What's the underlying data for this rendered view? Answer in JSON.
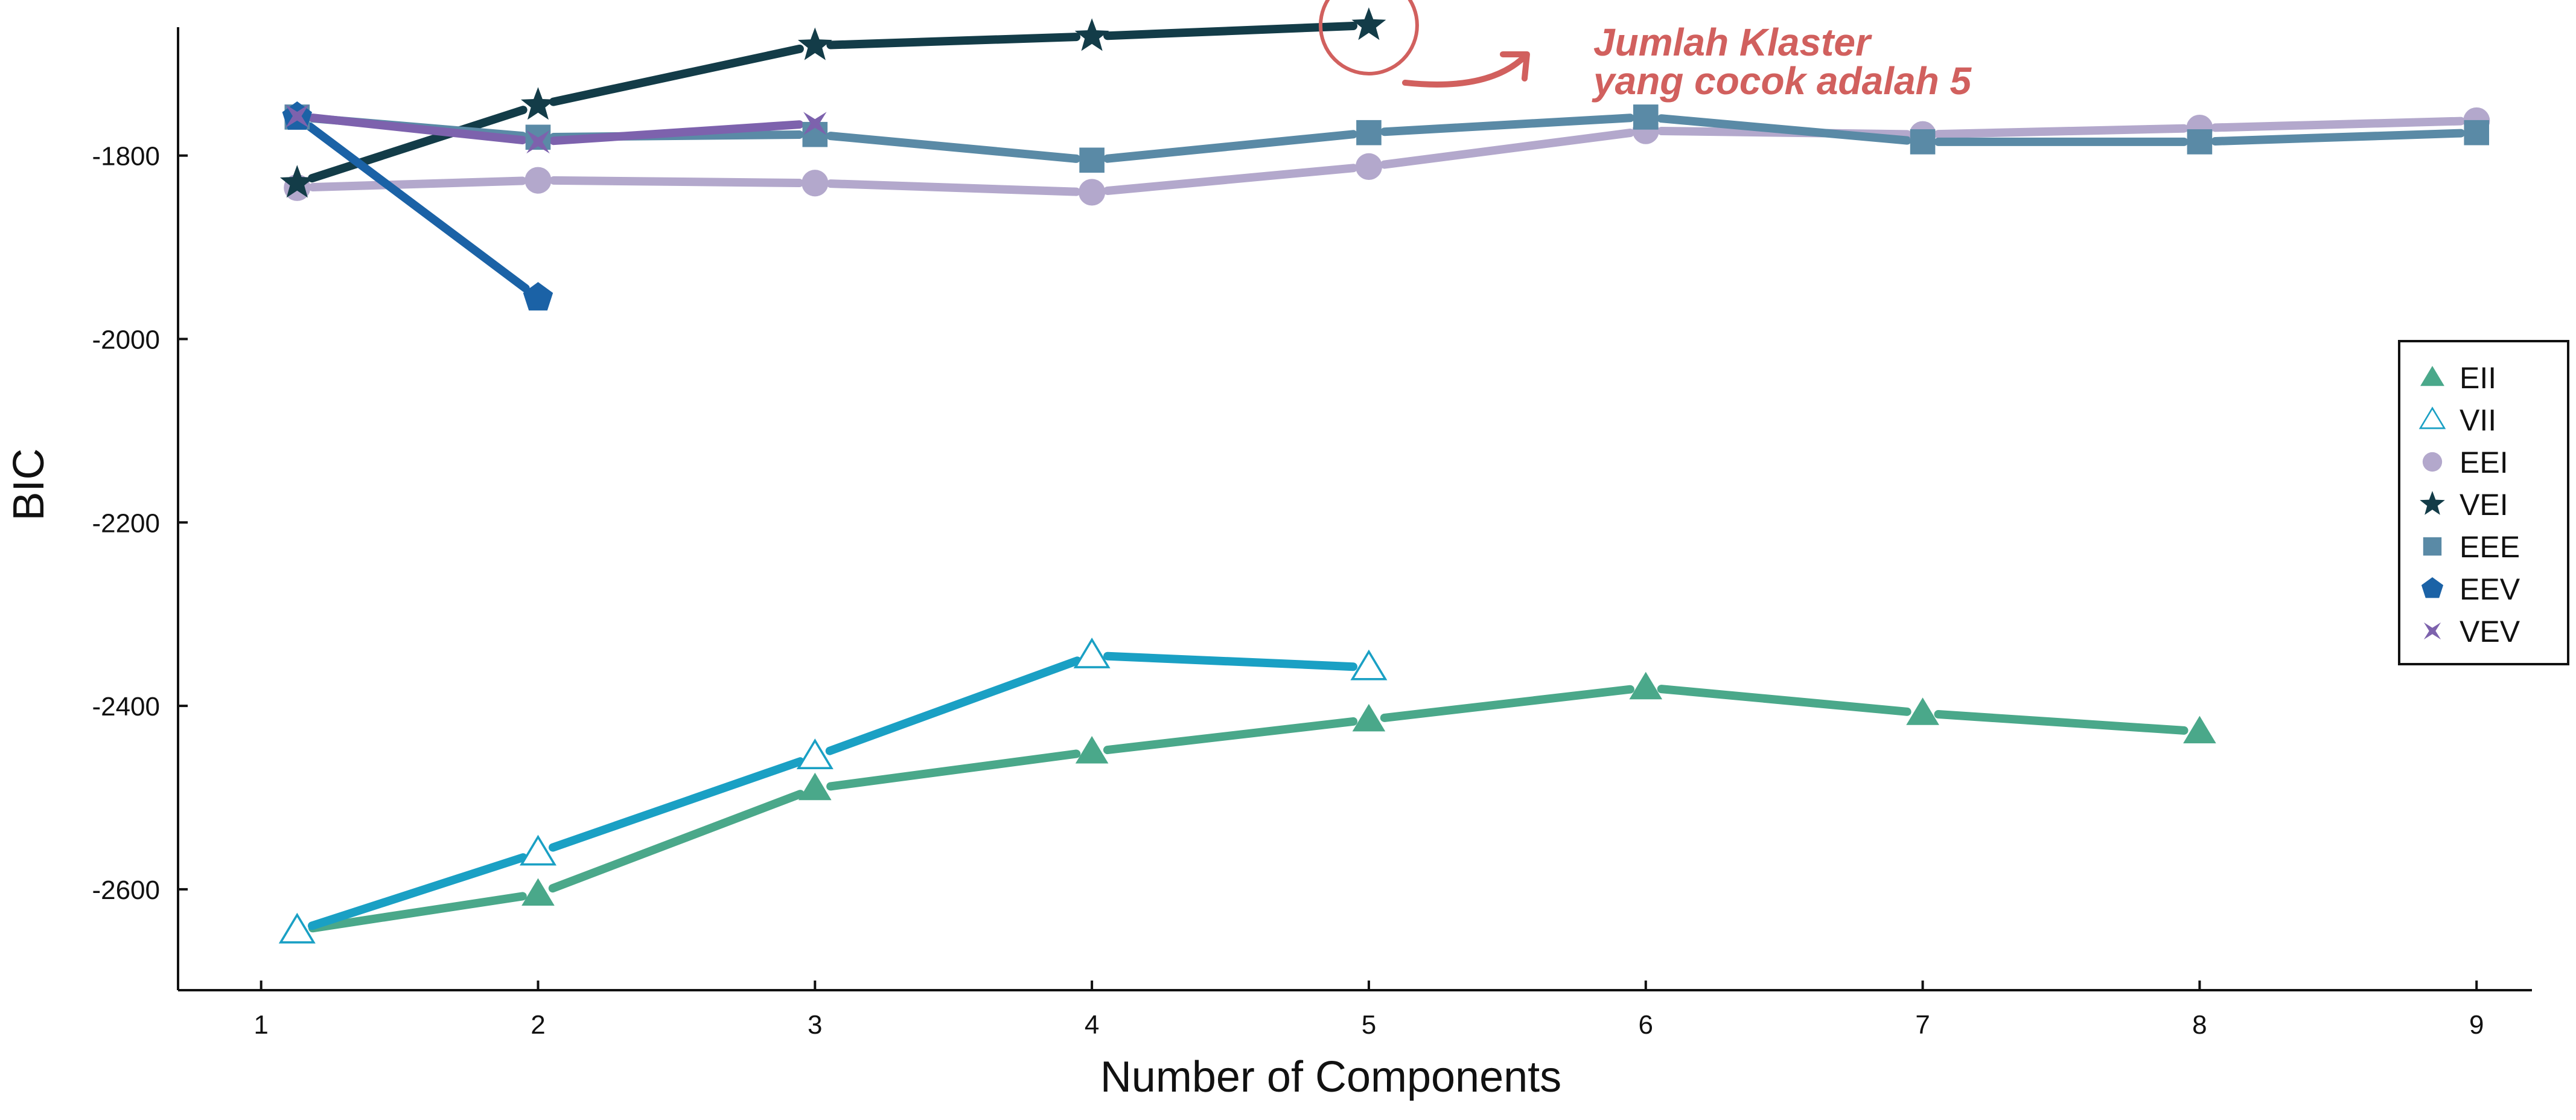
{
  "chart_data": {
    "type": "line",
    "title": "",
    "xlabel": "Number of Components",
    "ylabel": "BIC",
    "xlim": [
      0.7,
      9.2
    ],
    "ylim": [
      -2710,
      -1660
    ],
    "xticks": [
      1,
      2,
      3,
      4,
      5,
      6,
      7,
      8,
      9
    ],
    "yticks": [
      -2600,
      -2400,
      -2200,
      -2000,
      -1800
    ],
    "legend_position": "right",
    "grid": false,
    "series": [
      {
        "name": "EII",
        "color": "#4aa88a",
        "marker": "triangle-filled",
        "x": [
          1.13,
          2,
          3,
          4,
          5,
          6,
          7,
          8
        ],
        "y": [
          -2645,
          -2605,
          -2490,
          -2450,
          -2415,
          -2380,
          -2408,
          -2428
        ]
      },
      {
        "name": "VII",
        "color": "#1aa0c4",
        "marker": "triangle-open",
        "x": [
          1.13,
          2,
          3,
          4,
          5
        ],
        "y": [
          -2645,
          -2560,
          -2455,
          -2345,
          -2358
        ]
      },
      {
        "name": "EEI",
        "color": "#b3a8cc",
        "marker": "circle",
        "x": [
          1.13,
          2,
          3,
          4,
          5,
          6,
          7,
          8,
          9
        ],
        "y": [
          -1835,
          -1827,
          -1830,
          -1840,
          -1812,
          -1773,
          -1777,
          -1770,
          -1762
        ]
      },
      {
        "name": "VEI",
        "color": "#133c48",
        "marker": "star",
        "x": [
          1.13,
          2,
          3,
          4,
          5
        ],
        "y": [
          -1830,
          -1745,
          -1680,
          -1670,
          -1658
        ]
      },
      {
        "name": "EEE",
        "color": "#5a8aa6",
        "marker": "square",
        "x": [
          1.13,
          2,
          3,
          4,
          5,
          6,
          7,
          8,
          9
        ],
        "y": [
          -1758,
          -1780,
          -1777,
          -1805,
          -1775,
          -1758,
          -1785,
          -1785,
          -1775
        ]
      },
      {
        "name": "EEV",
        "color": "#1b62a6",
        "marker": "pentagon",
        "x": [
          1.13,
          2
        ],
        "y": [
          -1758,
          -1955
        ]
      },
      {
        "name": "VEV",
        "color": "#7d62ad",
        "marker": "x-star",
        "x": [
          1.13,
          2,
          3
        ],
        "y": [
          -1757,
          -1785,
          -1765
        ]
      }
    ],
    "annotations": [
      {
        "text_line1": "Jumlah Klaster",
        "text_line2": "yang cocok adalah 5",
        "target_x": 5,
        "target_y": -1658,
        "color": "#d1605e"
      }
    ]
  }
}
